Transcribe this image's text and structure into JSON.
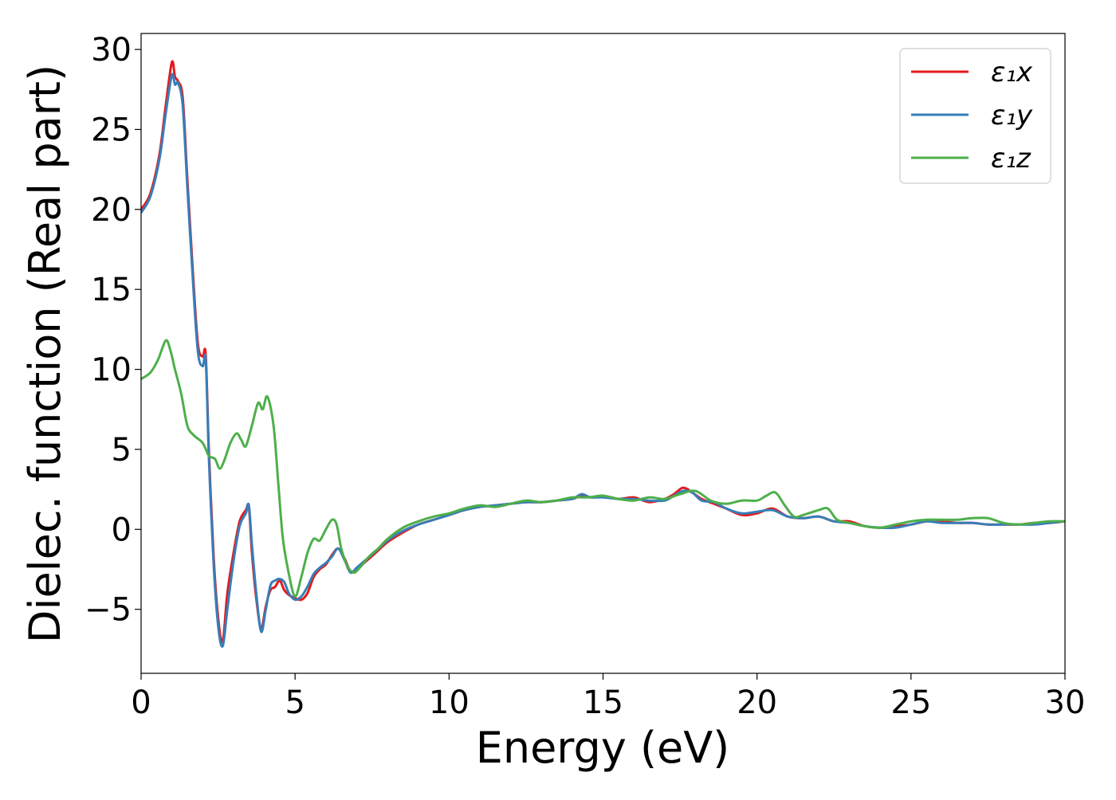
{
  "chart_data": {
    "type": "line",
    "xlabel": "Energy (eV)",
    "ylabel": "Dielec. function (Real part)",
    "xlim": [
      0,
      30
    ],
    "ylim": [
      -9,
      31
    ],
    "xticks": [
      0,
      5,
      10,
      15,
      20,
      25,
      30
    ],
    "yticks": [
      -5,
      0,
      5,
      10,
      15,
      20,
      25,
      30
    ],
    "xtick_labels": [
      "0",
      "5",
      "10",
      "15",
      "20",
      "25",
      "30"
    ],
    "ytick_labels": [
      "−5",
      "0",
      "5",
      "10",
      "15",
      "20",
      "25",
      "30"
    ],
    "grid": false,
    "legend_position": "top-right",
    "series": [
      {
        "name": "ε₁x",
        "color": "#e41a1c",
        "x": [
          0,
          0.3,
          0.6,
          0.8,
          1.0,
          1.1,
          1.2,
          1.35,
          1.5,
          1.7,
          1.85,
          2.0,
          2.1,
          2.2,
          2.35,
          2.5,
          2.65,
          2.8,
          3.0,
          3.2,
          3.4,
          3.5,
          3.6,
          3.75,
          3.9,
          4.05,
          4.2,
          4.35,
          4.5,
          4.65,
          4.8,
          5.0,
          5.2,
          5.4,
          5.6,
          5.8,
          6.0,
          6.2,
          6.4,
          6.6,
          6.8,
          7.0,
          7.3,
          7.6,
          8.0,
          8.5,
          9.0,
          9.5,
          10.0,
          10.5,
          11.0,
          11.5,
          12.0,
          12.5,
          13.0,
          13.5,
          14.0,
          14.3,
          14.6,
          15.0,
          15.5,
          16.0,
          16.5,
          17.0,
          17.3,
          17.6,
          17.9,
          18.2,
          18.6,
          19.0,
          19.5,
          20.0,
          20.5,
          21.0,
          21.5,
          22.0,
          22.5,
          23.0,
          23.5,
          24.0,
          24.5,
          25.0,
          25.5,
          26.0,
          26.5,
          27.0,
          27.5,
          28.0,
          28.5,
          29.0,
          29.5,
          30.0
        ],
        "values": [
          20.0,
          21.0,
          23.5,
          26.5,
          29.2,
          28.3,
          28.0,
          27.0,
          22.0,
          15.5,
          11.5,
          10.8,
          10.9,
          5.0,
          -1.5,
          -5.5,
          -7.0,
          -4.0,
          -1.5,
          0.5,
          1.2,
          1.4,
          -1.5,
          -4.5,
          -6.2,
          -4.8,
          -3.8,
          -3.6,
          -3.2,
          -3.8,
          -4.1,
          -4.3,
          -4.4,
          -4.0,
          -3.0,
          -2.5,
          -2.2,
          -1.6,
          -1.2,
          -1.8,
          -2.6,
          -2.5,
          -2.0,
          -1.5,
          -0.8,
          -0.2,
          0.3,
          0.6,
          0.9,
          1.2,
          1.4,
          1.5,
          1.6,
          1.7,
          1.7,
          1.8,
          1.9,
          2.1,
          2.0,
          2.1,
          1.9,
          2.0,
          1.7,
          1.9,
          2.2,
          2.6,
          2.3,
          1.9,
          1.6,
          1.3,
          0.9,
          1.0,
          1.3,
          0.8,
          0.7,
          0.8,
          0.5,
          0.5,
          0.2,
          0.1,
          0.2,
          0.3,
          0.5,
          0.5,
          0.4,
          0.4,
          0.3,
          0.3,
          0.3,
          0.4,
          0.4,
          0.5
        ]
      },
      {
        "name": "ε₁y",
        "color": "#377eb8",
        "x": [
          0,
          0.3,
          0.6,
          0.8,
          1.0,
          1.1,
          1.2,
          1.35,
          1.5,
          1.7,
          1.85,
          2.0,
          2.1,
          2.2,
          2.35,
          2.5,
          2.65,
          2.8,
          3.0,
          3.2,
          3.4,
          3.5,
          3.6,
          3.75,
          3.9,
          4.05,
          4.2,
          4.35,
          4.5,
          4.65,
          4.8,
          5.0,
          5.2,
          5.4,
          5.6,
          5.8,
          6.0,
          6.2,
          6.4,
          6.6,
          6.8,
          7.0,
          7.3,
          7.6,
          8.0,
          8.5,
          9.0,
          9.5,
          10.0,
          10.5,
          11.0,
          11.5,
          12.0,
          12.5,
          13.0,
          13.5,
          14.0,
          14.3,
          14.6,
          15.0,
          15.5,
          16.0,
          16.5,
          17.0,
          17.3,
          17.6,
          17.9,
          18.2,
          18.6,
          19.0,
          19.5,
          20.0,
          20.5,
          21.0,
          21.5,
          22.0,
          22.5,
          23.0,
          23.5,
          24.0,
          24.5,
          25.0,
          25.5,
          26.0,
          26.5,
          27.0,
          27.5,
          28.0,
          28.5,
          29.0,
          29.5,
          30.0
        ],
        "values": [
          19.8,
          20.8,
          23.2,
          26.0,
          28.4,
          27.8,
          27.9,
          26.5,
          21.5,
          15.0,
          11.0,
          10.2,
          10.6,
          4.5,
          -2.0,
          -6.0,
          -7.3,
          -5.0,
          -2.0,
          0.2,
          1.0,
          1.5,
          -1.0,
          -4.2,
          -6.4,
          -5.0,
          -3.5,
          -3.2,
          -3.1,
          -3.3,
          -4.0,
          -4.4,
          -4.2,
          -3.6,
          -2.8,
          -2.4,
          -2.1,
          -1.7,
          -1.2,
          -1.9,
          -2.7,
          -2.4,
          -1.9,
          -1.4,
          -0.7,
          -0.1,
          0.3,
          0.6,
          0.9,
          1.2,
          1.4,
          1.5,
          1.6,
          1.7,
          1.7,
          1.8,
          1.9,
          2.2,
          2.0,
          2.0,
          1.9,
          1.9,
          1.8,
          1.8,
          2.1,
          2.4,
          2.3,
          1.8,
          1.7,
          1.3,
          1.0,
          1.1,
          1.2,
          0.8,
          0.7,
          0.8,
          0.5,
          0.4,
          0.2,
          0.1,
          0.1,
          0.3,
          0.5,
          0.4,
          0.4,
          0.4,
          0.3,
          0.3,
          0.3,
          0.3,
          0.4,
          0.5
        ]
      },
      {
        "name": "ε₁z",
        "color": "#4daf4a",
        "x": [
          0,
          0.3,
          0.55,
          0.8,
          0.95,
          1.1,
          1.3,
          1.5,
          1.7,
          2.0,
          2.2,
          2.4,
          2.55,
          2.7,
          2.9,
          3.1,
          3.25,
          3.4,
          3.6,
          3.8,
          3.95,
          4.1,
          4.3,
          4.45,
          4.6,
          4.8,
          5.0,
          5.2,
          5.4,
          5.6,
          5.8,
          6.0,
          6.2,
          6.35,
          6.5,
          6.7,
          6.9,
          7.1,
          7.4,
          7.7,
          8.0,
          8.5,
          9.0,
          9.5,
          10.0,
          10.5,
          11.0,
          11.5,
          12.0,
          12.5,
          13.0,
          13.5,
          14.0,
          14.5,
          15.0,
          15.5,
          16.0,
          16.5,
          17.0,
          17.5,
          18.0,
          18.5,
          19.0,
          19.5,
          20.0,
          20.3,
          20.6,
          20.9,
          21.2,
          21.5,
          22.0,
          22.3,
          22.6,
          23.0,
          23.5,
          24.0,
          24.5,
          25.0,
          25.5,
          26.0,
          26.5,
          27.0,
          27.5,
          28.0,
          28.5,
          29.0,
          29.5,
          30.0
        ],
        "values": [
          9.4,
          9.8,
          10.6,
          11.8,
          11.2,
          10.0,
          8.5,
          6.5,
          5.9,
          5.4,
          4.6,
          4.4,
          3.8,
          4.3,
          5.4,
          6.0,
          5.6,
          5.2,
          6.5,
          7.9,
          7.5,
          8.3,
          6.5,
          3.0,
          -0.5,
          -2.8,
          -4.2,
          -3.0,
          -1.5,
          -0.6,
          -0.7,
          0.0,
          0.6,
          0.3,
          -1.2,
          -2.3,
          -2.7,
          -2.4,
          -1.7,
          -1.2,
          -0.6,
          0.1,
          0.5,
          0.8,
          1.0,
          1.3,
          1.5,
          1.4,
          1.6,
          1.8,
          1.7,
          1.8,
          2.0,
          2.0,
          2.1,
          1.9,
          1.8,
          2.0,
          1.9,
          2.2,
          2.4,
          1.8,
          1.6,
          1.8,
          1.8,
          2.1,
          2.3,
          1.5,
          0.8,
          0.9,
          1.2,
          1.3,
          0.6,
          0.4,
          0.2,
          0.1,
          0.3,
          0.5,
          0.6,
          0.6,
          0.6,
          0.7,
          0.7,
          0.4,
          0.3,
          0.4,
          0.5,
          0.5
        ]
      }
    ]
  }
}
